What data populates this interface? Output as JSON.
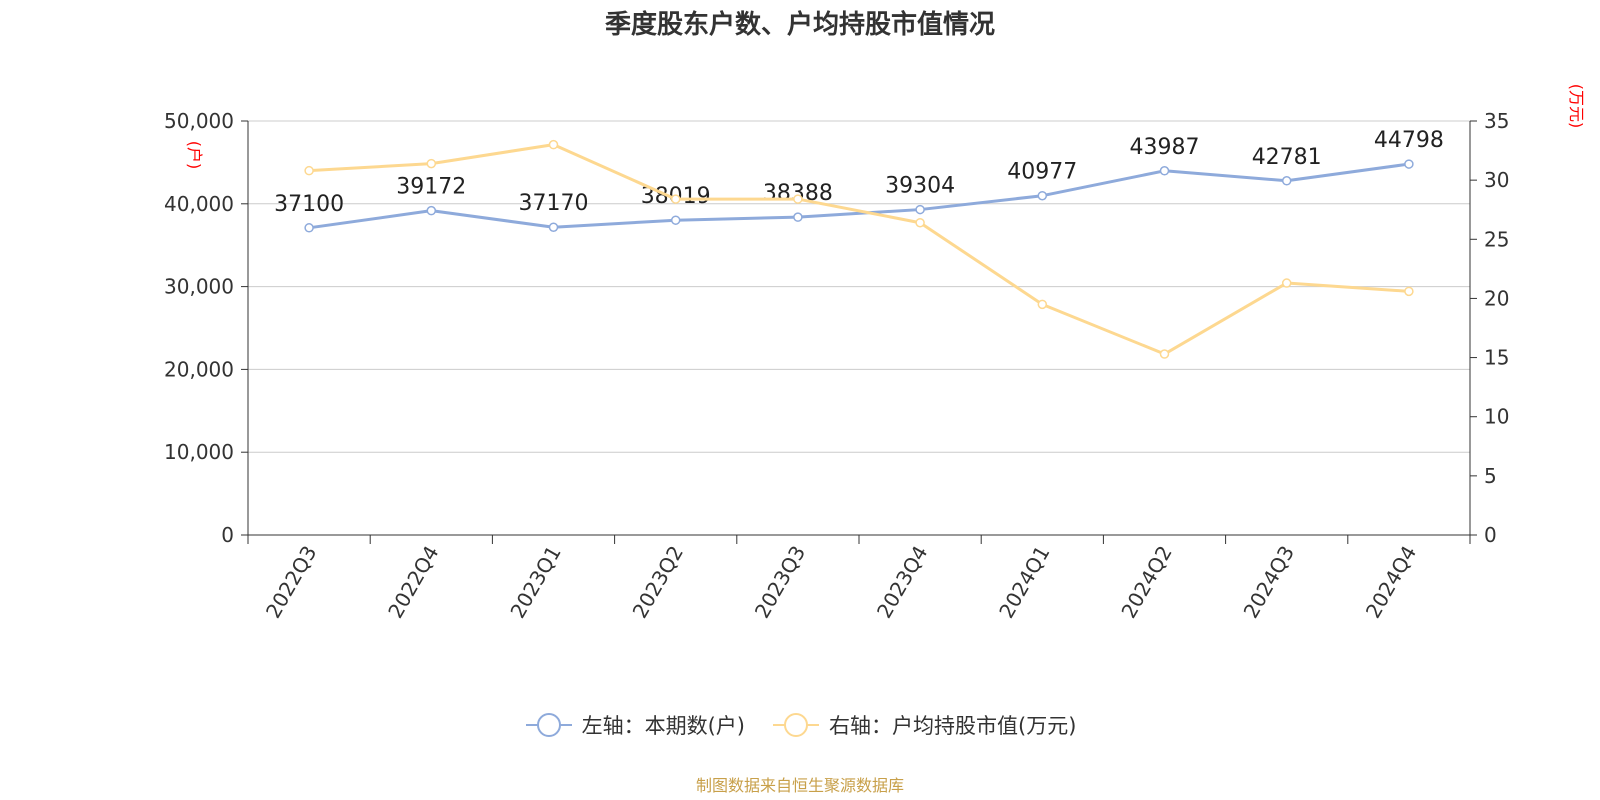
{
  "chart_data": {
    "type": "line",
    "title": "季度股东户数、户均持股市值情况",
    "categories": [
      "2022Q3",
      "2022Q4",
      "2023Q1",
      "2023Q2",
      "2023Q3",
      "2023Q4",
      "2024Q1",
      "2024Q2",
      "2024Q3",
      "2024Q4"
    ],
    "left_axis": {
      "unit_label": "(户)",
      "ylim": [
        0,
        50000
      ],
      "ticks": [
        "0",
        "10,000",
        "20,000",
        "30,000",
        "40,000",
        "50,000"
      ],
      "tick_values": [
        0,
        10000,
        20000,
        30000,
        40000,
        50000
      ]
    },
    "right_axis": {
      "unit_label": "(万元)",
      "ylim": [
        0,
        35
      ],
      "ticks": [
        "0",
        "5",
        "10",
        "15",
        "20",
        "25",
        "30",
        "35"
      ],
      "tick_values": [
        0,
        5,
        10,
        15,
        20,
        25,
        30,
        35
      ]
    },
    "series": [
      {
        "name": "左轴：本期数(户)",
        "axis": "left",
        "color": "#8eaadb",
        "values": [
          37100,
          39172,
          37170,
          38019,
          38388,
          39304,
          40977,
          43987,
          42781,
          44798
        ],
        "labels": [
          "37100",
          "39172",
          "37170",
          "38019",
          "38388",
          "39304",
          "40977",
          "43987",
          "42781",
          "44798"
        ]
      },
      {
        "name": "右轴：户均持股市值(万元)",
        "axis": "right",
        "color": "#fdd890",
        "values": [
          30.8,
          31.4,
          33.0,
          28.4,
          28.4,
          26.4,
          19.5,
          15.3,
          21.3,
          20.6
        ]
      }
    ],
    "grid": true,
    "legend_position": "bottom-center"
  },
  "source_text": "制图数据来自恒生聚源数据库",
  "colors": {
    "axis_unit": "#ff0000",
    "source": "#c8a04a",
    "grid": "#cccccc",
    "axis_line": "#333333",
    "text": "#333333"
  }
}
